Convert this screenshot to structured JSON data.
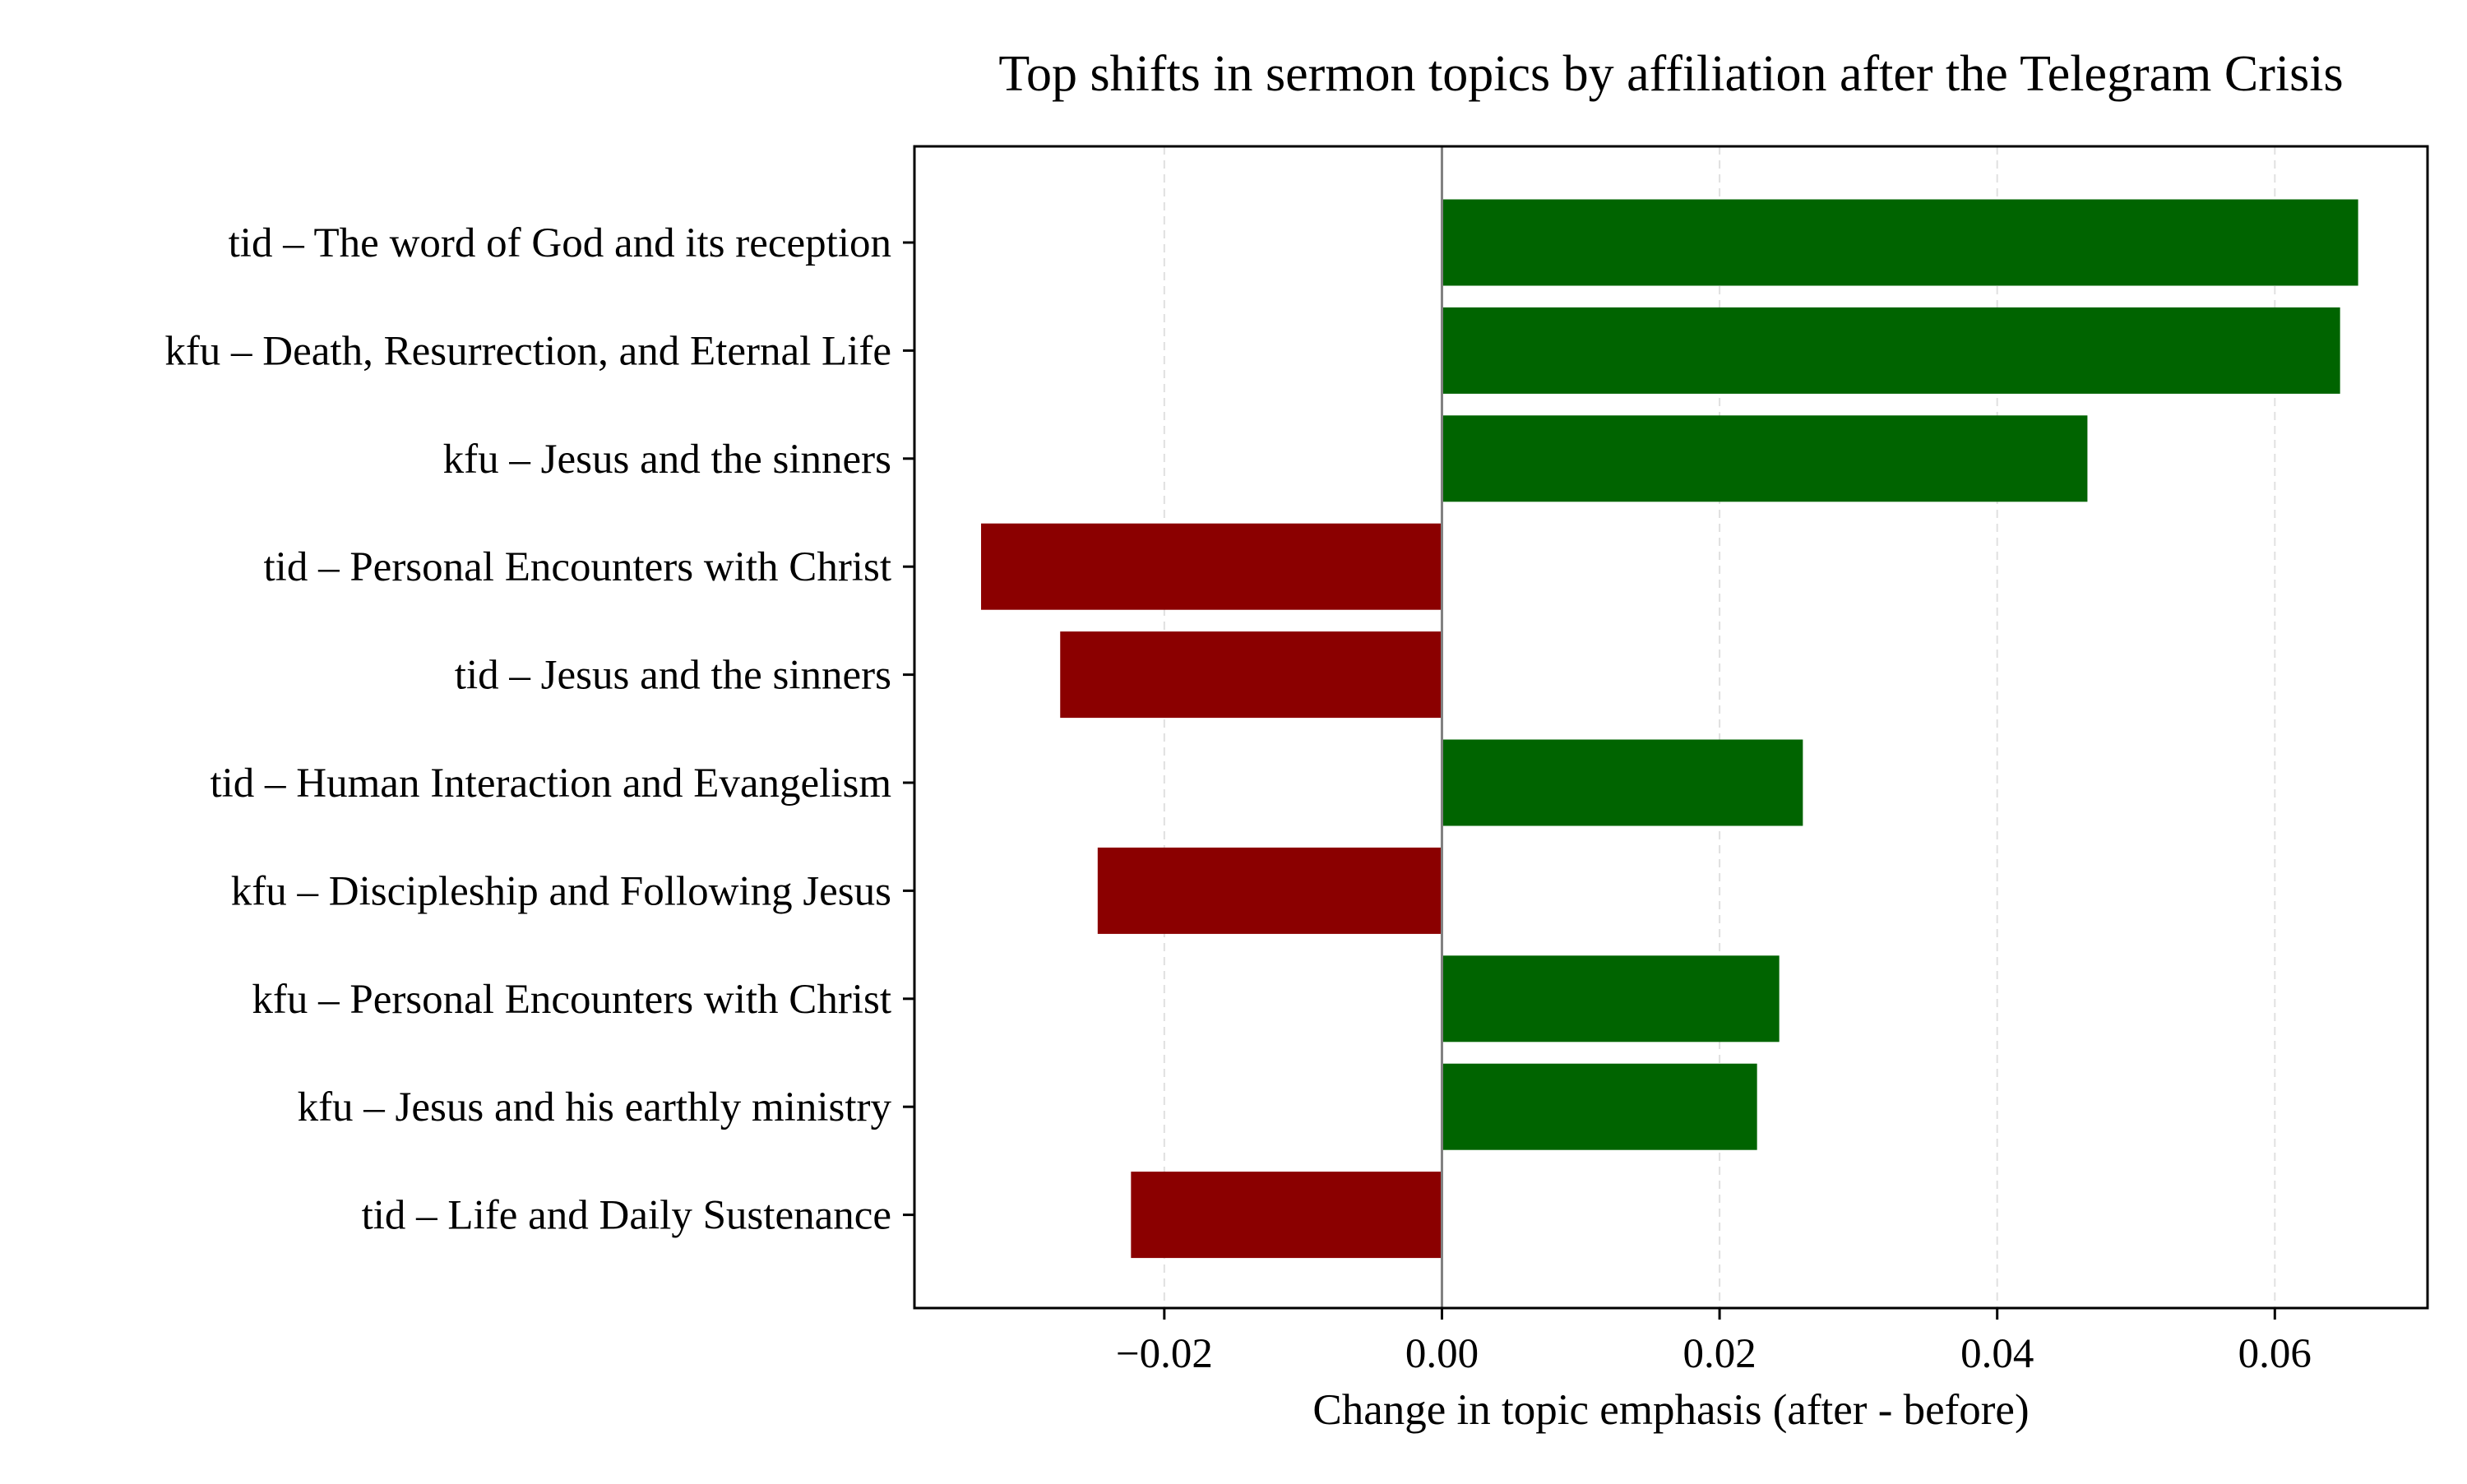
{
  "chart_data": {
    "type": "bar",
    "orientation": "horizontal",
    "title": "Top shifts in sermon topics by affiliation after the Telegram Crisis",
    "xlabel": "Change in topic emphasis (after - before)",
    "ylabel": "",
    "categories": [
      "tid – The word of God and its reception",
      "kfu – Death, Resurrection, and Eternal Life",
      "kfu – Jesus and the sinners",
      "tid – Personal Encounters with Christ",
      "tid – Jesus and the sinners",
      "tid – Human Interaction and  Evangelism",
      "kfu – Discipleship and Following Jesus",
      "kfu – Personal Encounters with Christ",
      "kfu – Jesus and his earthly ministry",
      "tid – Life and Daily Sustenance"
    ],
    "values": [
      0.066,
      0.0647,
      0.0465,
      -0.0332,
      -0.0275,
      0.026,
      -0.0248,
      0.0243,
      0.0227,
      -0.0224
    ],
    "xlim": [
      -0.038,
      0.071
    ],
    "xticks": [
      -0.02,
      0.0,
      0.02,
      0.04,
      0.06
    ],
    "xtick_labels": [
      "−0.02",
      "0.00",
      "0.02",
      "0.04",
      "0.06"
    ],
    "grid": "x-dashed",
    "colors": {
      "positive": "#006400",
      "negative": "#8b0000",
      "zero_line": "#808080",
      "grid": "#e0e0e0"
    }
  }
}
